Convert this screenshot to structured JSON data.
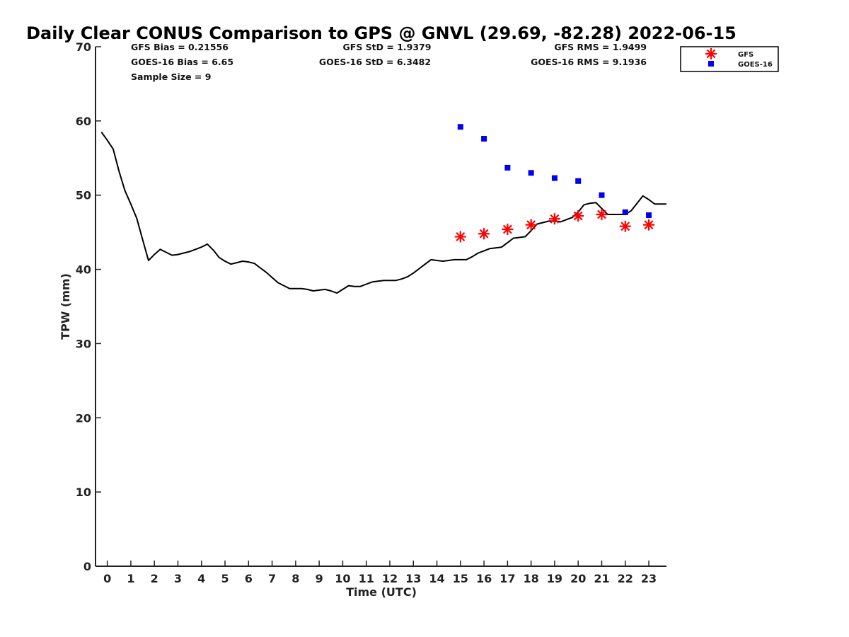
{
  "chart_data": {
    "type": "scatter",
    "title": "Daily Clear CONUS Comparison to GPS @ GNVL (29.69, -82.28) 2022-06-15",
    "xlabel": "Time (UTC)",
    "ylabel": "TPW (mm)",
    "xlim": [
      -0.5,
      23.75
    ],
    "ylim": [
      0,
      70
    ],
    "xticks": [
      "0",
      "1",
      "2",
      "3",
      "4",
      "5",
      "6",
      "7",
      "8",
      "9",
      "10",
      "11",
      "12",
      "13",
      "14",
      "15",
      "16",
      "17",
      "18",
      "19",
      "20",
      "21",
      "22",
      "23"
    ],
    "yticks": [
      "0",
      "10",
      "20",
      "30",
      "40",
      "50",
      "60",
      "70"
    ],
    "grid": false,
    "legend_position": "top-right",
    "stats": {
      "gfs_bias": "GFS Bias = 0.21556",
      "goes_bias": "GOES-16 Bias = 6.65",
      "sample_size": "Sample Size = 9",
      "gfs_std": "GFS StD = 1.9379",
      "goes_std": "GOES-16 StD = 6.3482",
      "gfs_rms": "GFS RMS = 1.9499",
      "goes_rms": "GOES-16 RMS = 9.1936"
    },
    "legend": [
      "GFS",
      "GOES-16"
    ],
    "colors": {
      "gps": "#000000",
      "gfs": "#ff0000",
      "goes": "#0000ee"
    },
    "series": [
      {
        "kind": "line",
        "x": [
          -0.25,
          0,
          0.25,
          0.5,
          0.75,
          1,
          1.25,
          1.5,
          1.75,
          2,
          2.25,
          2.5,
          2.75,
          3,
          3.25,
          3.5,
          3.75,
          4,
          4.25,
          4.5,
          4.75,
          5,
          5.25,
          5.5,
          5.75,
          6,
          6.25,
          6.5,
          6.75,
          7,
          7.25,
          7.5,
          7.75,
          8,
          8.25,
          8.5,
          8.75,
          9,
          9.25,
          9.5,
          9.75,
          10,
          10.25,
          10.5,
          10.75,
          11,
          11.25,
          11.5,
          11.75,
          12,
          12.25,
          12.5,
          12.75,
          13,
          13.25,
          13.5,
          13.75,
          14,
          14.25,
          14.5,
          14.75,
          15,
          15.25,
          15.5,
          15.75,
          16,
          16.25,
          16.5,
          16.75,
          17,
          17.25,
          17.5,
          17.75,
          18,
          18.25,
          18.5,
          18.75,
          19,
          19.25,
          19.5,
          19.75,
          20,
          20.25,
          20.5,
          20.75,
          21,
          21.25,
          21.5,
          21.75,
          22,
          22.25,
          22.5,
          22.75,
          23,
          23.25,
          23.5,
          23.75
        ],
        "y": [
          58.5,
          57.4,
          56.2,
          53.2,
          50.6,
          48.8,
          46.9,
          44.0,
          41.2,
          42.0,
          42.7,
          42.3,
          41.9,
          42.0,
          42.2,
          42.4,
          42.7,
          43.0,
          43.4,
          42.6,
          41.6,
          41.1,
          40.7,
          40.9,
          41.1,
          41.0,
          40.8,
          40.2,
          39.6,
          38.9,
          38.2,
          37.8,
          37.4,
          37.4,
          37.4,
          37.3,
          37.1,
          37.2,
          37.3,
          37.1,
          36.8,
          37.3,
          37.8,
          37.7,
          37.7,
          38.0,
          38.3,
          38.4,
          38.5,
          38.5,
          38.5,
          38.7,
          39.0,
          39.5,
          40.1,
          40.7,
          41.3,
          41.2,
          41.1,
          41.2,
          41.3,
          41.3,
          41.3,
          41.7,
          42.2,
          42.5,
          42.8,
          42.9,
          43.0,
          43.6,
          44.2,
          44.3,
          44.4,
          45.2,
          46.1,
          46.3,
          46.5,
          46.5,
          46.4,
          46.7,
          47.0,
          47.7,
          48.7,
          48.9,
          49.0,
          48.2,
          47.4,
          47.4,
          47.4,
          47.4,
          47.9,
          48.9,
          49.9,
          49.4,
          48.8,
          48.8,
          48.8
        ]
      },
      {
        "name": "GFS",
        "kind": "star",
        "x": [
          15,
          16,
          17,
          18,
          19,
          20,
          21,
          22,
          23
        ],
        "y": [
          44.4,
          44.8,
          45.4,
          46.0,
          46.8,
          47.2,
          47.4,
          45.8,
          46.0
        ]
      },
      {
        "name": "GOES-16",
        "kind": "square",
        "x": [
          15,
          16,
          17,
          18,
          19,
          20,
          21,
          22,
          23
        ],
        "y": [
          59.2,
          57.6,
          53.7,
          53.0,
          52.3,
          51.9,
          50.0,
          47.7,
          47.3
        ]
      }
    ]
  }
}
